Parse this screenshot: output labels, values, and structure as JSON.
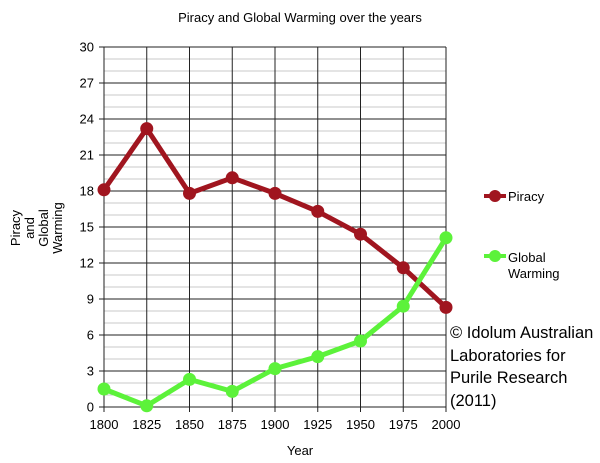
{
  "chart_data": {
    "type": "line",
    "title": "Piracy and Global Warming over the years",
    "xlabel": "Year",
    "ylabel": "Piracy and Global Warming",
    "ylabel_lines": [
      "Piracy",
      "and",
      "Global",
      "Warming"
    ],
    "x": [
      1800,
      1825,
      1850,
      1875,
      1900,
      1925,
      1950,
      1975,
      2000
    ],
    "x_tick_labels": [
      "1800",
      "1825",
      "1850",
      "1875",
      "1900",
      "1925",
      "1950",
      "1975",
      "2000"
    ],
    "ylim": [
      0,
      30
    ],
    "y_ticks": [
      0,
      3,
      6,
      9,
      12,
      15,
      18,
      21,
      24,
      27,
      30
    ],
    "grid": true,
    "legend_position": "right",
    "series": [
      {
        "name": "Piracy",
        "color": "#a0151f",
        "values": [
          18.1,
          23.2,
          17.8,
          19.1,
          17.8,
          16.3,
          14.4,
          11.6,
          8.3
        ]
      },
      {
        "name": "Global Warming",
        "color": "#5cf23a",
        "values": [
          1.5,
          0.1,
          2.3,
          1.3,
          3.2,
          4.2,
          5.5,
          8.4,
          14.1
        ]
      }
    ],
    "legend_labels": {
      "piracy": [
        "Piracy"
      ],
      "warming": [
        "Global",
        "Warming"
      ]
    },
    "annotation": "© Idolum Australian Laboratories for Purile Research (2011)"
  }
}
